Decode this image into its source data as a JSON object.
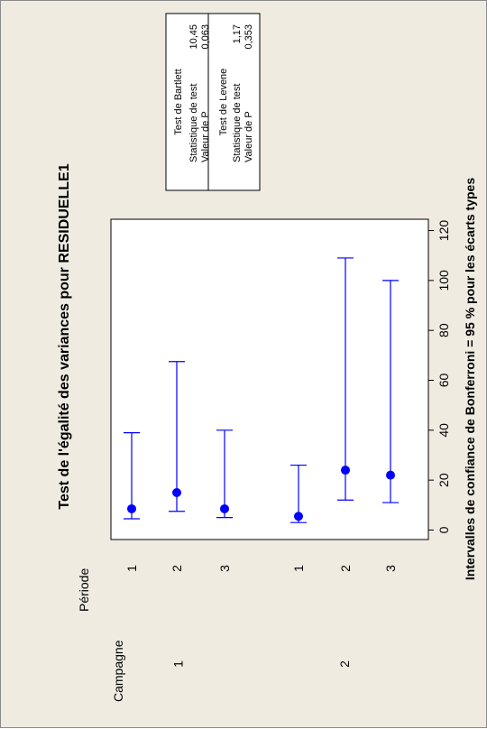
{
  "chart_data": {
    "type": "interval",
    "title": "Test de l'égalité des variances pour RESIDUELLE1",
    "xlabel": "Intervalles de confiance de Bonferroni = 95 % pour les écarts types",
    "factor_headers": [
      "Campagne",
      "Période"
    ],
    "groups": [
      {
        "campagne": "1",
        "periodes": [
          {
            "periode": "1",
            "low": 4.5,
            "center": 8.5,
            "high": 39
          },
          {
            "periode": "2",
            "low": 7.5,
            "center": 15,
            "high": 67.5
          },
          {
            "periode": "3",
            "low": 5,
            "center": 8.5,
            "high": 40
          }
        ]
      },
      {
        "campagne": "2",
        "periodes": [
          {
            "periode": "1",
            "low": 3,
            "center": 5.5,
            "high": 26
          },
          {
            "periode": "2",
            "low": 12,
            "center": 24,
            "high": 109
          },
          {
            "periode": "3",
            "low": 11,
            "center": 22,
            "high": 100
          }
        ]
      }
    ],
    "x_ticks": [
      0,
      20,
      40,
      60,
      80,
      100,
      120
    ],
    "xlim": [
      -2,
      122
    ],
    "series_color": "#0000ff",
    "stats": {
      "bartlett": {
        "title": "Test de Bartlett",
        "stat_label": "Statistique de test",
        "stat_value": "10,45",
        "p_label": "Valeur de P",
        "p_value": "0,063"
      },
      "levene": {
        "title": "Test de Levene",
        "stat_label": "Statistique de test",
        "stat_value": "1,17",
        "p_label": "Valeur de P",
        "p_value": "0,353"
      }
    }
  }
}
